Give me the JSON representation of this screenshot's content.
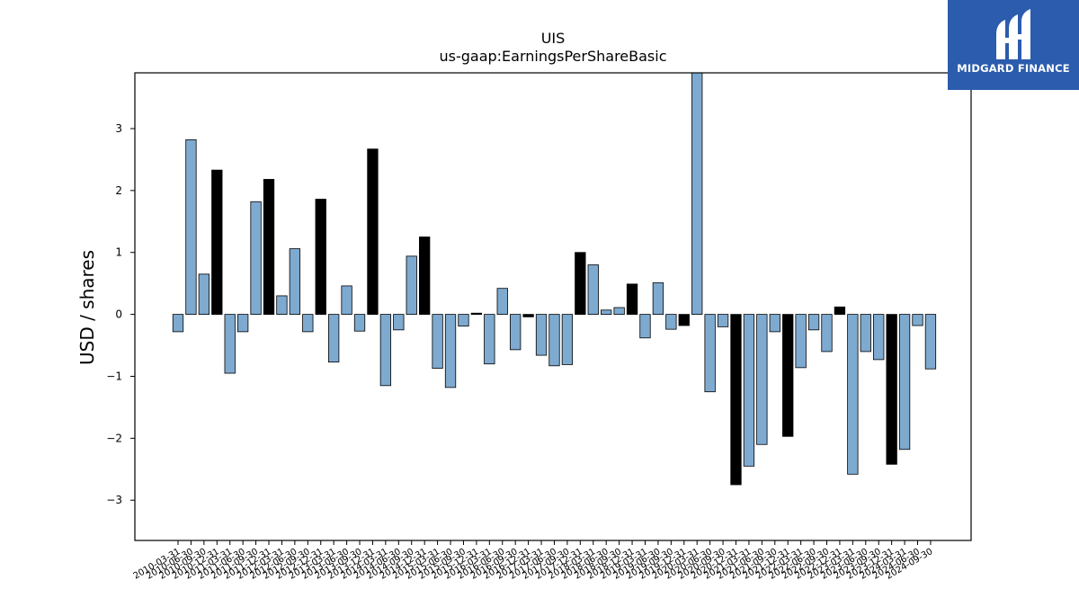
{
  "chart_data": {
    "type": "bar",
    "title": "UIS",
    "subtitle": "us-gaap:EarningsPerShareBasic",
    "ylabel": "USD / shares",
    "xlabel": "",
    "ylim": [
      -3.65,
      3.9
    ],
    "yticks": [
      -3,
      -2,
      -1,
      0,
      1,
      2,
      3
    ],
    "ytick_labels": [
      "−3",
      "−2",
      "−1",
      "0",
      "1",
      "2",
      "3"
    ],
    "grid": false,
    "colors": {
      "regular": "#7eaad0",
      "highlight": "#000000",
      "edge": "#000000"
    },
    "categories": [
      "2010-03-31",
      "2010-06-30",
      "2010-09-30",
      "2010-12-31",
      "2011-03-31",
      "2011-06-30",
      "2011-09-30",
      "2011-12-31",
      "2012-03-31",
      "2012-06-30",
      "2012-09-30",
      "2012-12-31",
      "2013-03-31",
      "2013-06-30",
      "2013-09-30",
      "2013-12-31",
      "2014-03-31",
      "2014-06-30",
      "2014-09-30",
      "2014-12-31",
      "2015-03-31",
      "2015-06-30",
      "2015-09-30",
      "2015-12-31",
      "2016-03-31",
      "2016-06-30",
      "2016-09-30",
      "2016-12-31",
      "2017-03-31",
      "2017-06-30",
      "2017-09-30",
      "2017-12-31",
      "2018-03-31",
      "2018-06-30",
      "2018-09-30",
      "2018-12-31",
      "2019-03-31",
      "2019-06-30",
      "2019-09-30",
      "2019-12-31",
      "2020-03-31",
      "2020-06-30",
      "2020-09-30",
      "2020-12-31",
      "2021-03-31",
      "2021-06-30",
      "2021-09-30",
      "2021-12-31",
      "2022-03-31",
      "2022-06-30",
      "2022-09-30",
      "2022-12-31",
      "2023-03-31",
      "2023-06-30",
      "2023-09-30",
      "2023-12-31",
      "2024-03-31",
      "2024-06-30",
      "2024-09-30"
    ],
    "values": [
      -0.28,
      2.82,
      0.65,
      2.33,
      -0.95,
      -0.28,
      1.82,
      2.18,
      0.3,
      1.06,
      -0.28,
      1.86,
      -0.77,
      0.46,
      -0.27,
      2.67,
      -1.15,
      -0.25,
      0.94,
      1.25,
      -0.87,
      -1.18,
      -0.19,
      0.02,
      -0.8,
      0.42,
      -0.57,
      -0.04,
      -0.66,
      -0.83,
      -0.81,
      1.0,
      0.8,
      0.07,
      0.11,
      0.49,
      -0.38,
      0.51,
      -0.24,
      -0.18,
      3.92,
      -1.25,
      -0.2,
      -2.75,
      -2.45,
      -2.1,
      -0.28,
      -1.97,
      -0.86,
      -0.25,
      -0.6,
      0.12,
      -2.58,
      -0.6,
      -0.73,
      -2.42,
      -2.18,
      -0.18,
      -0.88
    ],
    "highlight": [
      false,
      false,
      false,
      true,
      false,
      false,
      false,
      true,
      false,
      false,
      false,
      true,
      false,
      false,
      false,
      true,
      false,
      false,
      false,
      true,
      false,
      false,
      false,
      true,
      false,
      false,
      false,
      true,
      false,
      false,
      false,
      true,
      false,
      false,
      false,
      true,
      false,
      false,
      false,
      true,
      false,
      false,
      false,
      true,
      false,
      false,
      false,
      true,
      false,
      false,
      false,
      true,
      false,
      false,
      false,
      true,
      false,
      false,
      false
    ]
  },
  "logo": {
    "text": "MIDGARD FINANCE",
    "icon": "midgard-logo-icon",
    "background": "#2b5cad"
  }
}
